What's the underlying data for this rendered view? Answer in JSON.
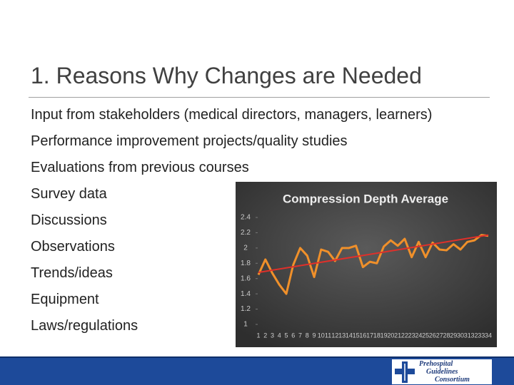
{
  "slide": {
    "title": "1. Reasons Why Changes are Needed",
    "bullets": [
      "Input from stakeholders (medical directors, managers, learners)",
      "Performance improvement projects/quality studies",
      "Evaluations from previous courses",
      "Survey data",
      "Discussions",
      "Observations",
      "Trends/ideas",
      "Equipment",
      "Laws/regulations"
    ],
    "logo": [
      "Prehospital",
      "Guidelines",
      "Consortium"
    ]
  },
  "chart_data": {
    "type": "line",
    "title": "Compression Depth Average",
    "categories": [
      "1",
      "2",
      "3",
      "4",
      "5",
      "6",
      "7",
      "8",
      "9",
      "10",
      "11",
      "12",
      "13",
      "14",
      "15",
      "16",
      "17",
      "18",
      "19",
      "20",
      "21",
      "22",
      "23",
      "24",
      "25",
      "26",
      "27",
      "28",
      "29",
      "30",
      "31",
      "32",
      "33",
      "34"
    ],
    "series": [
      {
        "color": "#f0902a",
        "values": [
          1.65,
          1.85,
          1.67,
          1.52,
          1.4,
          1.78,
          2.0,
          1.9,
          1.62,
          1.98,
          1.95,
          1.83,
          2.0,
          2.0,
          2.03,
          1.75,
          1.82,
          1.8,
          2.02,
          2.1,
          2.03,
          2.12,
          1.88,
          2.08,
          1.88,
          2.07,
          1.98,
          1.97,
          2.05,
          1.98,
          2.08,
          2.1,
          2.17,
          2.16
        ]
      }
    ],
    "trendline": {
      "color": "#e0302a",
      "values": [
        1.68,
        2.17
      ]
    },
    "ylim": [
      1,
      2.4
    ],
    "yticks": [
      1,
      1.2,
      1.4,
      1.6,
      1.8,
      2,
      2.2,
      2.4
    ],
    "grid": false
  }
}
